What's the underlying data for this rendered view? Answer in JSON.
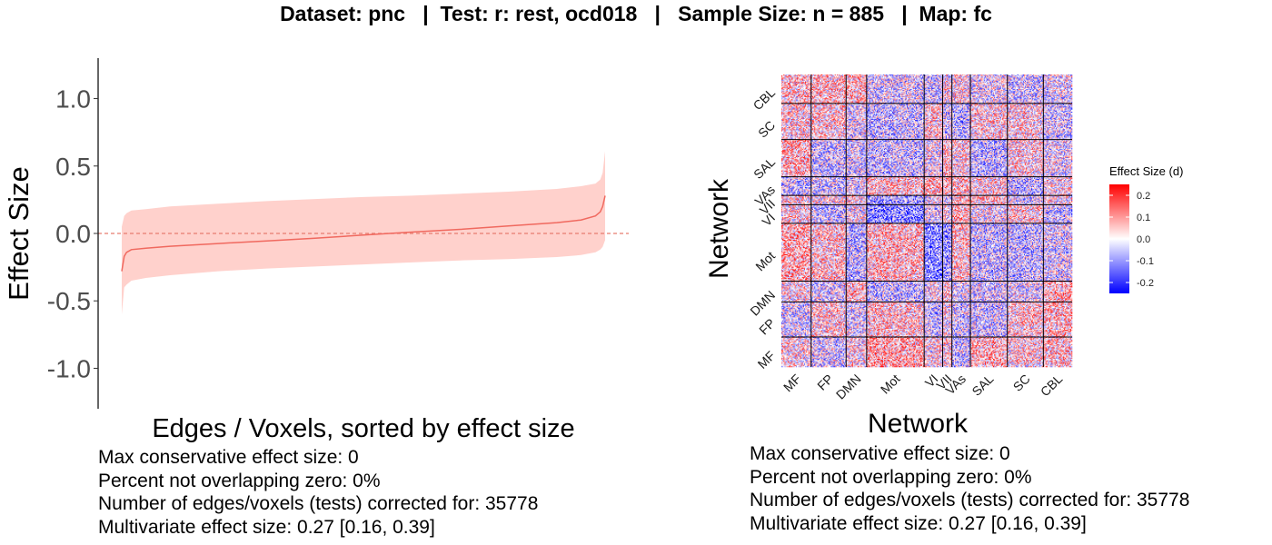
{
  "title": "Dataset: pnc   |  Test: r: rest, ocd018   |   Sample Size: n = 885   |  Map: fc",
  "colors": {
    "ribbon": "#ffd1cc",
    "line": "#f0695f",
    "zero_line": "#e87c6f",
    "heat_low": "#0000ff",
    "heat_mid": "#ffffff",
    "heat_high": "#ff0000",
    "network_border": "#000000"
  },
  "chart_data": [
    {
      "type": "area",
      "xlabel": "Edges / Voxels, sorted by effect size",
      "ylabel": "Effect Size",
      "ylim": [
        -1.3,
        1.3
      ],
      "yticks": [
        1.0,
        0.5,
        0.0,
        -0.5,
        -1.0
      ],
      "ytick_labels": [
        "1.0",
        "0.5",
        "0.0",
        "-0.5",
        "-1.0"
      ],
      "reference_line": {
        "y": 0,
        "style": "dashed"
      },
      "x_quantile": [
        0,
        0.005,
        0.01,
        0.02,
        0.05,
        0.1,
        0.2,
        0.3,
        0.4,
        0.5,
        0.6,
        0.7,
        0.8,
        0.9,
        0.95,
        0.98,
        0.99,
        0.995,
        1
      ],
      "estimate": [
        -0.28,
        -0.17,
        -0.14,
        -0.12,
        -0.11,
        -0.095,
        -0.075,
        -0.055,
        -0.035,
        -0.012,
        0.01,
        0.03,
        0.055,
        0.08,
        0.1,
        0.13,
        0.16,
        0.2,
        0.28
      ],
      "ci_lower": [
        -0.6,
        -0.4,
        -0.38,
        -0.35,
        -0.33,
        -0.31,
        -0.28,
        -0.26,
        -0.245,
        -0.23,
        -0.215,
        -0.2,
        -0.19,
        -0.175,
        -0.16,
        -0.14,
        -0.12,
        -0.1,
        -0.05
      ],
      "ci_upper": [
        0.05,
        0.13,
        0.15,
        0.17,
        0.18,
        0.2,
        0.22,
        0.24,
        0.255,
        0.27,
        0.28,
        0.295,
        0.31,
        0.33,
        0.35,
        0.37,
        0.4,
        0.45,
        0.61
      ],
      "stats": [
        "Max conservative effect size: 0",
        "Percent not overlapping zero: 0%",
        "Number of edges/voxels (tests) corrected for: 35778",
        "Multivariate effect size: 0.27 [0.16, 0.39]"
      ]
    },
    {
      "type": "heatmap",
      "xlabel": "Network",
      "ylabel": "Network",
      "networks": [
        "MF",
        "FP",
        "DMN",
        "Mot",
        "VI",
        "VII",
        "VAs",
        "SAL",
        "SC",
        "CBL"
      ],
      "network_sizes": [
        29,
        34,
        20,
        56,
        18,
        9,
        18,
        36,
        35,
        28
      ],
      "legend_title": "Effect Size (d)",
      "legend_ticks": [
        0.2,
        0.1,
        0.0,
        -0.1,
        -0.2
      ],
      "legend_tick_labels": [
        "0.2",
        "0.1",
        "0.0",
        "-0.1",
        "-0.2"
      ],
      "color_range": [
        -0.25,
        0.25
      ],
      "stats": [
        "Max conservative effect size: 0",
        "Percent not overlapping zero: 0%",
        "Number of edges/voxels (tests) corrected for: 35778",
        "Multivariate effect size: 0.27 [0.16, 0.39]"
      ]
    }
  ]
}
